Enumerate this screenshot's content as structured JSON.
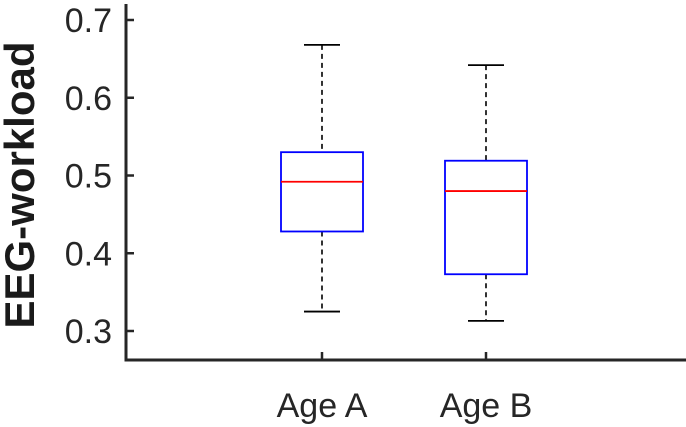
{
  "chart_data": {
    "type": "box",
    "ylabel": "EEG-workload",
    "xlabel": "",
    "title": "",
    "ylim": [
      0.26,
      0.72
    ],
    "yticks": [
      0.3,
      0.4,
      0.5,
      0.6,
      0.7
    ],
    "ytick_labels": [
      "0.3",
      "0.4",
      "0.5",
      "0.6",
      "0.7"
    ],
    "categories": [
      "Age A",
      "Age B"
    ],
    "boxes": [
      {
        "whisker_low": 0.325,
        "q1": 0.428,
        "median": 0.492,
        "q3": 0.53,
        "whisker_high": 0.668
      },
      {
        "whisker_low": 0.313,
        "q1": 0.373,
        "median": 0.48,
        "q3": 0.519,
        "whisker_high": 0.642
      }
    ],
    "colors": {
      "box": "#0000ff",
      "median": "#ff0000",
      "whisker": "#000000",
      "axis": "#262626"
    },
    "grid": false
  }
}
